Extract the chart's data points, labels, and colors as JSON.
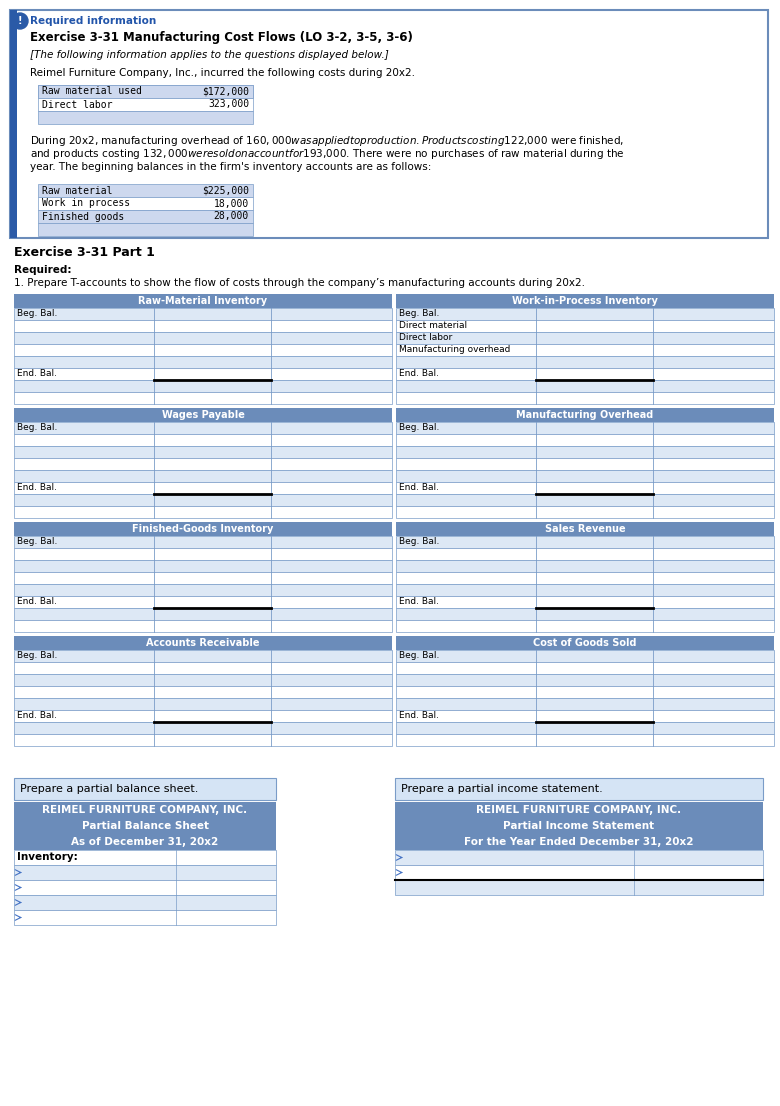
{
  "title_box": {
    "required_info": "Required information",
    "exercise_title": "Exercise 3-31 Manufacturing Cost Flows (LO 3-2, 3-5, 3-6)",
    "subtitle": "[The following information applies to the questions displayed below.]",
    "intro": "Reimel Furniture Company, Inc., incurred the following costs during 20x2.",
    "cost_table": [
      [
        "Raw material used",
        "$172,000"
      ],
      [
        "Direct labor",
        "323,000"
      ]
    ],
    "paragraph1": "During 20x2, manufacturing overhead of $160,000 was applied to production. Products costing $122,000 were finished,",
    "paragraph2": "and products costing $132,000 were sold on account for $193,000. There were no purchases of raw material during the",
    "paragraph3": "year. The beginning balances in the firm's inventory accounts are as follows:",
    "inv_table": [
      [
        "Raw material",
        "$225,000"
      ],
      [
        "Work in process",
        "18,000"
      ],
      [
        "Finished goods",
        "28,000"
      ]
    ]
  },
  "exercise_part1": "Exercise 3-31 Part 1",
  "header_color": "#6b8cba",
  "hdr_text_color": "#ffffff",
  "row_alt": "#dde8f5",
  "row_white": "#ffffff",
  "border_color": "#7a9cc8",
  "prepare_bs_label": "Prepare a partial balance sheet.",
  "prepare_is_label": "Prepare a partial income statement.",
  "balance_sheet": {
    "company": "REIMEL FURNITURE COMPANY, INC.",
    "title": "Partial Balance Sheet",
    "date": "As of December 31, 20x2",
    "inventory_label": "Inventory:"
  },
  "income_statement": {
    "company": "REIMEL FURNITURE COMPANY, INC.",
    "title": "Partial Income Statement",
    "date": "For the Year Ended December 31, 20x2"
  },
  "t_accounts": [
    {
      "title": "Raw-Material Inventory",
      "col": 0,
      "row": 0,
      "labels": [
        "Beg. Bal.",
        "",
        "",
        "",
        "",
        "End. Bal.",
        ""
      ]
    },
    {
      "title": "Work-in-Process Inventory",
      "col": 1,
      "row": 0,
      "labels": [
        "Beg. Bal.",
        "Direct material",
        "Direct labor",
        "Manufacturing overhead",
        "",
        "End. Bal.",
        ""
      ]
    },
    {
      "title": "Wages Payable",
      "col": 0,
      "row": 1,
      "labels": [
        "Beg. Bal.",
        "",
        "",
        "",
        "",
        "End. Bal.",
        ""
      ]
    },
    {
      "title": "Manufacturing Overhead",
      "col": 1,
      "row": 1,
      "labels": [
        "Beg. Bal.",
        "",
        "",
        "",
        "",
        "End. Bal.",
        ""
      ]
    },
    {
      "title": "Finished-Goods Inventory",
      "col": 0,
      "row": 2,
      "labels": [
        "Beg. Bal.",
        "",
        "",
        "",
        "",
        "End. Bal.",
        ""
      ]
    },
    {
      "title": "Sales Revenue",
      "col": 1,
      "row": 2,
      "labels": [
        "Beg. Bal.",
        "",
        "",
        "",
        "",
        "End. Bal.",
        ""
      ]
    },
    {
      "title": "Accounts Receivable",
      "col": 0,
      "row": 3,
      "labels": [
        "Beg. Bal.",
        "",
        "",
        "",
        "",
        "End. Bal.",
        ""
      ]
    },
    {
      "title": "Cost of Goods Sold",
      "col": 1,
      "row": 3,
      "labels": [
        "Beg. Bal.",
        "",
        "",
        "",
        "",
        "End. Bal.",
        ""
      ]
    }
  ]
}
